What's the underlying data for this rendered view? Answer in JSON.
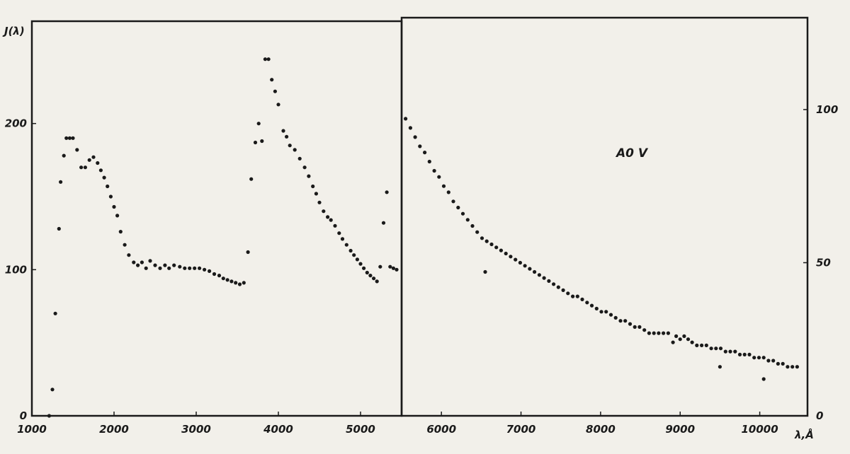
{
  "chart_data": [
    {
      "type": "scatter",
      "ylabel": "J(λ)",
      "xlim": [
        1000,
        5500
      ],
      "ylim": [
        0,
        270
      ],
      "x_ticks": [
        "1000",
        "2000",
        "3000",
        "4000",
        "5000"
      ],
      "y_ticks": [
        "0",
        "100",
        "200"
      ],
      "grid": false,
      "series": [
        {
          "x": [
            1210,
            1250,
            1285,
            1330,
            1350,
            1390,
            1420,
            1460,
            1500,
            1550,
            1600,
            1650,
            1700,
            1750,
            1800,
            1840,
            1880,
            1920,
            1960,
            2000,
            2040,
            2080,
            2130,
            2180,
            2240,
            2290,
            2340,
            2390,
            2440,
            2500,
            2560,
            2620,
            2670,
            2730,
            2800,
            2860,
            2920,
            2980,
            3040,
            3100,
            3160,
            3220,
            3280,
            3330,
            3380,
            3430,
            3480,
            3530,
            3580,
            3630,
            3670,
            3720,
            3760,
            3800,
            3840,
            3880,
            3920,
            3960,
            4000,
            4060,
            4100,
            4140,
            4200,
            4260,
            4320,
            4370,
            4420,
            4460,
            4500,
            4550,
            4600,
            4640,
            4690,
            4740,
            4780,
            4830,
            4880,
            4920,
            4960,
            5000,
            5040,
            5080,
            5120,
            5160,
            5200,
            5240,
            5280,
            5320,
            5360,
            5400,
            5440
          ],
          "y": [
            0,
            18,
            70,
            128,
            160,
            178,
            190,
            190,
            190,
            182,
            170,
            170,
            175,
            177,
            173,
            168,
            163,
            157,
            150,
            143,
            137,
            126,
            117,
            110,
            105,
            103,
            105,
            101,
            106,
            103,
            101,
            103,
            101,
            103,
            102,
            101,
            101,
            101,
            101,
            100,
            99,
            97,
            96,
            94,
            93,
            92,
            91,
            90,
            91,
            112,
            162,
            187,
            200,
            188,
            244,
            244,
            230,
            222,
            213,
            195,
            191,
            185,
            182,
            176,
            170,
            164,
            157,
            152,
            146,
            140,
            136,
            134,
            130,
            125,
            121,
            117,
            113,
            110,
            107,
            104,
            101,
            98,
            96,
            94,
            92,
            102,
            132,
            153,
            102,
            101,
            100
          ]
        }
      ]
    },
    {
      "type": "scatter",
      "xlim": [
        5500,
        10600
      ],
      "ylim": [
        0,
        130
      ],
      "x_ticks": [
        "6000",
        "7000",
        "8000",
        "9000",
        "10000"
      ],
      "y_ticks": [
        "0",
        "50",
        "100"
      ],
      "xlabel": "λ,Å",
      "annotation": "A0 V",
      "grid": false,
      "series": [
        {
          "x": [
            5550,
            5610,
            5670,
            5730,
            5790,
            5850,
            5910,
            5970,
            6030,
            6090,
            6150,
            6210,
            6270,
            6330,
            6390,
            6450,
            6510,
            6570,
            6630,
            6690,
            6750,
            6810,
            6870,
            6930,
            6990,
            7050,
            7110,
            7170,
            7230,
            7290,
            7350,
            7410,
            7470,
            7530,
            7590,
            7650,
            7710,
            7770,
            7830,
            7890,
            7950,
            8010,
            8070,
            8130,
            8190,
            8250,
            8310,
            8370,
            8430,
            8490,
            8550,
            8610,
            8670,
            8730,
            8790,
            8850,
            8910,
            8950,
            9000,
            9050,
            9100,
            9150,
            9210,
            9270,
            9330,
            9390,
            9450,
            9510,
            9570,
            9630,
            9690,
            9750,
            9810,
            9870,
            9930,
            9990,
            10050,
            10110,
            10170,
            10230,
            10290,
            10350,
            10410,
            10470,
            6550,
            9500,
            10050
          ],
          "y": [
            97,
            94,
            91,
            88,
            86,
            83,
            80,
            78,
            75,
            73,
            70,
            68,
            66,
            64,
            62,
            60,
            58,
            57,
            56,
            55,
            54,
            53,
            52,
            51,
            50,
            49,
            48,
            47,
            46,
            45,
            44,
            43,
            42,
            41,
            40,
            39,
            39,
            38,
            37,
            36,
            35,
            34,
            34,
            33,
            32,
            31,
            31,
            30,
            29,
            29,
            28,
            27,
            27,
            27,
            27,
            27,
            24,
            26,
            25,
            26,
            25,
            24,
            23,
            23,
            23,
            22,
            22,
            22,
            21,
            21,
            21,
            20,
            20,
            20,
            19,
            19,
            19,
            18,
            18,
            17,
            17,
            16,
            16,
            16,
            47,
            16,
            12
          ]
        }
      ]
    }
  ]
}
